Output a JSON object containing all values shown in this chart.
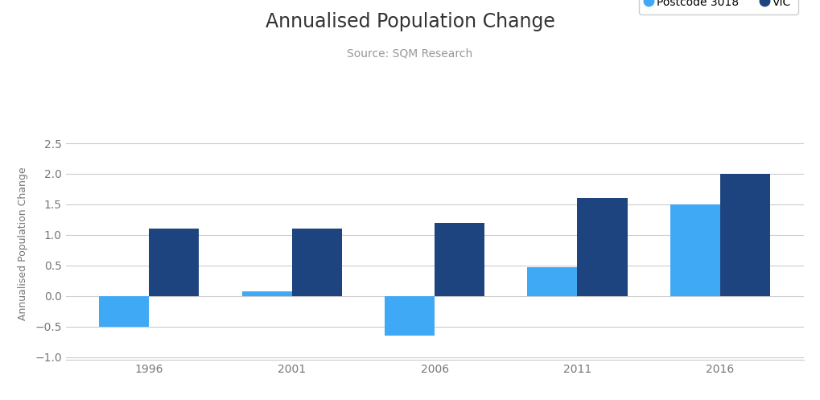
{
  "title": "Annualised Population Change",
  "subtitle": "Source: SQM Research",
  "categories": [
    1996,
    2001,
    2006,
    2011,
    2016
  ],
  "postcode_values": [
    -0.5,
    0.07,
    -0.65,
    0.47,
    1.5
  ],
  "vic_values": [
    1.1,
    1.1,
    1.2,
    1.6,
    2.0
  ],
  "postcode_color": "#3fa9f5",
  "vic_color": "#1e4480",
  "ylabel": "Annualised Population Change",
  "ylim": [
    -1.05,
    2.75
  ],
  "yticks": [
    -1,
    -0.5,
    0,
    0.5,
    1,
    1.5,
    2,
    2.5
  ],
  "legend_postcode": "Postcode 3018",
  "legend_vic": "VIC",
  "bar_width": 0.35,
  "background_color": "#ffffff",
  "title_fontsize": 17,
  "subtitle_fontsize": 10,
  "axis_fontsize": 9,
  "tick_fontsize": 10
}
